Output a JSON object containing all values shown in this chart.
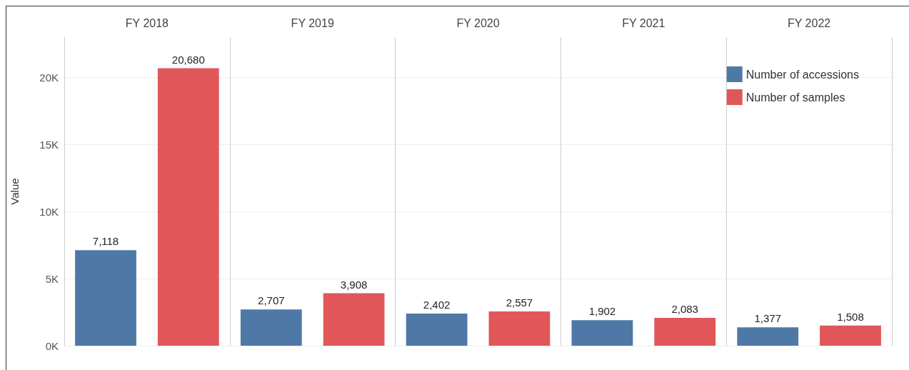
{
  "chart_data": {
    "type": "bar",
    "ylabel": "Value",
    "categories": [
      "FY 2018",
      "FY 2019",
      "FY 2020",
      "FY 2021",
      "FY 2022"
    ],
    "series": [
      {
        "name": "Number of accessions",
        "color": "#4e79a7",
        "values": [
          7118,
          2707,
          2402,
          1902,
          1377
        ],
        "value_labels": [
          "7,118",
          "2,707",
          "2,402",
          "1,902",
          "1,377"
        ]
      },
      {
        "name": "Number of samples",
        "color": "#e15759",
        "values": [
          20680,
          3908,
          2557,
          2083,
          1508
        ],
        "value_labels": [
          "20,680",
          "3,908",
          "2,557",
          "2,083",
          "1,508"
        ]
      }
    ],
    "ylim": [
      0,
      23000
    ],
    "yticks": [
      {
        "value": 0,
        "label": "0K"
      },
      {
        "value": 5000,
        "label": "5K"
      },
      {
        "value": 10000,
        "label": "10K"
      },
      {
        "value": 15000,
        "label": "15K"
      },
      {
        "value": 20000,
        "label": "20K"
      }
    ],
    "grid": "y",
    "legend": "top right"
  }
}
